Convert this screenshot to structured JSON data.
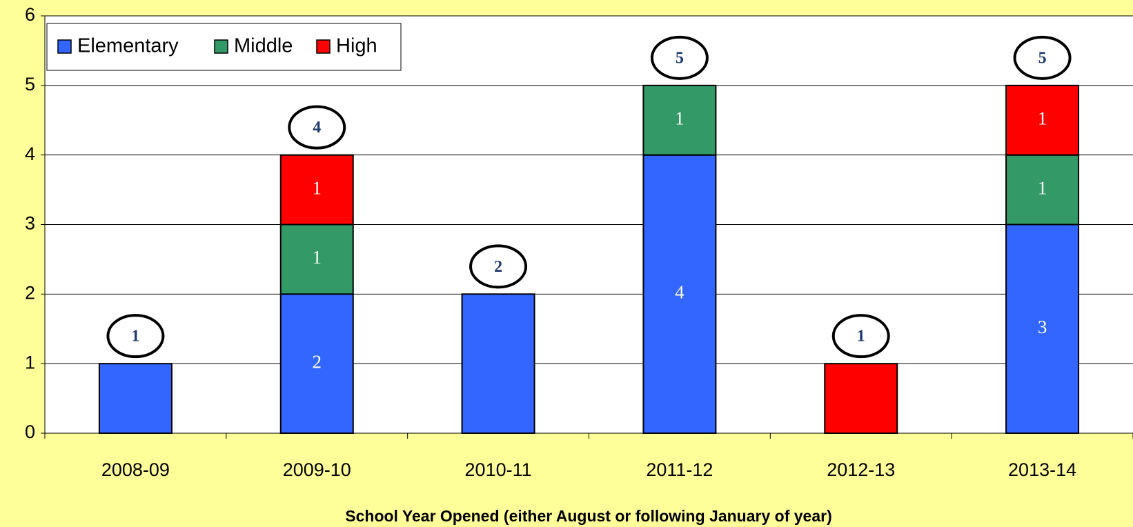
{
  "chart_data": {
    "type": "stacked_bar",
    "categories": [
      "2008-09",
      "2009-10",
      "2010-11",
      "2011-12",
      "2012-13",
      "2013-14"
    ],
    "series": [
      {
        "name": "Elementary",
        "color": "#3366ff",
        "values": [
          1,
          2,
          2,
          4,
          0,
          3
        ]
      },
      {
        "name": "Middle",
        "color": "#339966",
        "values": [
          0,
          1,
          0,
          1,
          0,
          1
        ]
      },
      {
        "name": "High",
        "color": "#ff0000",
        "values": [
          0,
          1,
          0,
          0,
          1,
          1
        ]
      }
    ],
    "totals": [
      1,
      4,
      2,
      5,
      1,
      5
    ],
    "xlabel": "School Year Opened (either August or following January of year)",
    "ylim": [
      0,
      6
    ],
    "yticks": [
      0,
      1,
      2,
      3,
      4,
      5,
      6
    ],
    "grid": true,
    "legend": "top-left"
  }
}
